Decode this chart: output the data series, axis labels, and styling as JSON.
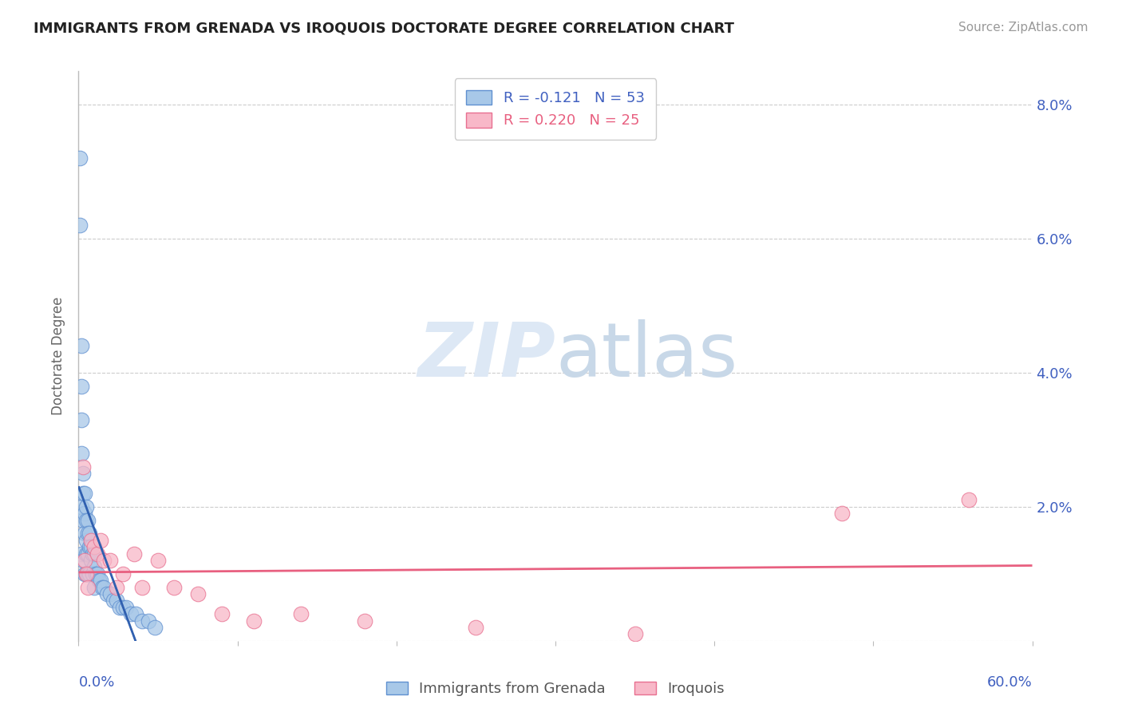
{
  "title": "IMMIGRANTS FROM GRENADA VS IROQUOIS DOCTORATE DEGREE CORRELATION CHART",
  "source": "Source: ZipAtlas.com",
  "ylabel": "Doctorate Degree",
  "xlim": [
    0.0,
    0.6
  ],
  "ylim": [
    -0.005,
    0.088
  ],
  "plot_ylim": [
    0.0,
    0.085
  ],
  "yticks": [
    0.0,
    0.02,
    0.04,
    0.06,
    0.08
  ],
  "ytick_labels": [
    "",
    "2.0%",
    "4.0%",
    "6.0%",
    "8.0%"
  ],
  "blue_color": "#a8c8e8",
  "blue_edge_color": "#6090d0",
  "blue_line_color": "#3060b0",
  "pink_color": "#f8b8c8",
  "pink_edge_color": "#e87090",
  "pink_line_color": "#e86080",
  "text_color": "#4060c0",
  "axis_color": "#bbbbbb",
  "grid_color": "#cccccc",
  "legend_r_blue": "R = -0.121",
  "legend_n_blue": "N = 53",
  "legend_r_pink": "R = 0.220",
  "legend_n_pink": "N = 25",
  "legend_label_blue": "Immigrants from Grenada",
  "legend_label_pink": "Iroquois",
  "blue_x": [
    0.001,
    0.001,
    0.002,
    0.002,
    0.002,
    0.002,
    0.002,
    0.002,
    0.003,
    0.003,
    0.003,
    0.003,
    0.004,
    0.004,
    0.004,
    0.004,
    0.005,
    0.005,
    0.005,
    0.005,
    0.005,
    0.006,
    0.006,
    0.006,
    0.006,
    0.007,
    0.007,
    0.007,
    0.008,
    0.008,
    0.009,
    0.009,
    0.01,
    0.01,
    0.01,
    0.011,
    0.012,
    0.013,
    0.014,
    0.015,
    0.016,
    0.018,
    0.02,
    0.022,
    0.024,
    0.026,
    0.028,
    0.03,
    0.033,
    0.036,
    0.04,
    0.044,
    0.048
  ],
  "blue_y": [
    0.072,
    0.062,
    0.044,
    0.038,
    0.033,
    0.028,
    0.02,
    0.013,
    0.025,
    0.022,
    0.018,
    0.012,
    0.022,
    0.019,
    0.016,
    0.01,
    0.02,
    0.018,
    0.015,
    0.013,
    0.01,
    0.018,
    0.016,
    0.013,
    0.01,
    0.016,
    0.014,
    0.01,
    0.014,
    0.012,
    0.013,
    0.01,
    0.013,
    0.011,
    0.008,
    0.01,
    0.01,
    0.009,
    0.009,
    0.008,
    0.008,
    0.007,
    0.007,
    0.006,
    0.006,
    0.005,
    0.005,
    0.005,
    0.004,
    0.004,
    0.003,
    0.003,
    0.002
  ],
  "pink_x": [
    0.003,
    0.004,
    0.005,
    0.006,
    0.008,
    0.01,
    0.012,
    0.014,
    0.016,
    0.02,
    0.024,
    0.028,
    0.035,
    0.04,
    0.05,
    0.06,
    0.075,
    0.09,
    0.11,
    0.14,
    0.18,
    0.25,
    0.35,
    0.48,
    0.56
  ],
  "pink_y": [
    0.026,
    0.012,
    0.01,
    0.008,
    0.015,
    0.014,
    0.013,
    0.015,
    0.012,
    0.012,
    0.008,
    0.01,
    0.013,
    0.008,
    0.012,
    0.008,
    0.007,
    0.004,
    0.003,
    0.004,
    0.003,
    0.002,
    0.001,
    0.019,
    0.021
  ]
}
